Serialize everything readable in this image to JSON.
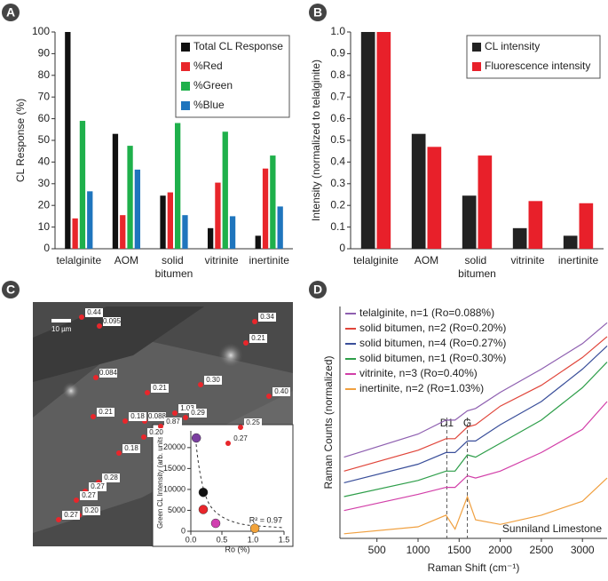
{
  "chart_data": [
    {
      "label": "A",
      "type": "bar",
      "y_label": "CL Response (%)",
      "legend": "upper right",
      "categories": [
        "telalginite",
        "AOM",
        "solid bitumen",
        "vitrinite",
        "inertinite"
      ],
      "series": [
        {
          "name": "Total CL Response",
          "color": "#111111",
          "values": [
            100,
            53,
            24.5,
            9.5,
            6
          ]
        },
        {
          "name": "%Red",
          "color": "#e8262b",
          "values": [
            14,
            15.5,
            26,
            30.5,
            37
          ]
        },
        {
          "name": "%Green",
          "color": "#1fb04b",
          "values": [
            59,
            47.5,
            58,
            54,
            43
          ]
        },
        {
          "name": "%Blue",
          "color": "#1f75bd",
          "values": [
            26.5,
            36.5,
            15.5,
            15,
            19.5
          ]
        }
      ],
      "ylim": [
        0,
        100
      ],
      "yticks": [
        0,
        10,
        20,
        30,
        40,
        50,
        60,
        70,
        80,
        90,
        100
      ]
    },
    {
      "label": "B",
      "type": "bar",
      "y_label": "Intensity (normalized to telalginite)",
      "legend": "upper right",
      "categories": [
        "telalginite",
        "AOM",
        "solid bitumen",
        "vitrinite",
        "inertinite"
      ],
      "series": [
        {
          "name": "CL intensity",
          "color": "#222222",
          "values": [
            1,
            0.53,
            0.245,
            0.095,
            0.06
          ]
        },
        {
          "name": "Fluorescence intensity",
          "color": "#e8202a",
          "values": [
            1,
            0.47,
            0.43,
            0.22,
            0.21
          ]
        }
      ],
      "ylim": [
        0,
        1
      ],
      "yticks": [
        0,
        0.1,
        0.2,
        0.3,
        0.4,
        0.5,
        0.6,
        0.7,
        0.8,
        0.9,
        {
          "value": 1,
          "label": "1.0"
        }
      ]
    },
    {
      "label": "C",
      "type": "scatter",
      "scale_bar": "10 µm",
      "image_labels": [
        "0.44",
        "0.095",
        "0.34",
        "0.21",
        "0.084",
        "0.30",
        "0.21",
        "0.40",
        "0.21",
        "0.088",
        "1.03",
        "0.29",
        "0.25",
        "0.18",
        "0.27",
        "0.87",
        "0.20",
        "0.18",
        "0.28",
        "0.27",
        "0.27",
        "0.20",
        "0.27"
      ],
      "x_label": "Ro (%)",
      "y_label": "Green CL Intensity (arb. units)",
      "annotation": "R² = 0.97",
      "x": [
        0.088,
        0.2,
        0.2,
        0.4,
        1.03
      ],
      "values": [
        22300,
        9300,
        5200,
        1900,
        700
      ],
      "colors": [
        "#7b3fa0",
        "#111111",
        "#e8262b",
        "#d13fb0",
        "#f2a33a"
      ],
      "xlim": [
        0,
        1.5
      ],
      "xticks": [
        {
          "value": 0,
          "label": "0.0"
        },
        {
          "value": 0.5,
          "label": "0.5"
        },
        {
          "value": 1,
          "label": "1.0"
        },
        {
          "value": 1.5,
          "label": "1.5"
        }
      ],
      "ylim": [
        0,
        24000
      ],
      "yticks": [
        0,
        5000,
        10000,
        15000,
        20000
      ]
    },
    {
      "label": "D",
      "type": "line",
      "x_label": "Raman Shift (cm⁻¹)",
      "y_label": "Raman Counts (normalized)",
      "annotation": "Sunniland Limestone",
      "legend": "upper left",
      "reference_lines": [
        {
          "x": 1350,
          "label": "D1"
        },
        {
          "x": 1600,
          "label": "G"
        }
      ],
      "x": [
        100,
        1000,
        1340,
        1450,
        1600,
        1700,
        2000,
        2500,
        3000,
        3300
      ],
      "series": [
        {
          "name": "telalginite, n=1 (Ro=0.088%)",
          "color": "#8e5fb0",
          "values": [
            3.5,
            4.5,
            5.1,
            5.1,
            5.5,
            5.6,
            6.3,
            7.3,
            8.4,
            9.3
          ]
        },
        {
          "name": "solid bitumen, n=2 (Ro=0.20%)",
          "color": "#e0453a",
          "values": [
            2.9,
            3.8,
            4.3,
            4.3,
            4.8,
            4.9,
            5.7,
            6.6,
            7.8,
            8.7
          ]
        },
        {
          "name": "solid bitumen, n=4 (Ro=0.27%)",
          "color": "#3a4f9a",
          "values": [
            2.4,
            3.2,
            3.7,
            3.7,
            4.2,
            4.2,
            4.9,
            5.9,
            7.3,
            8.3
          ]
        },
        {
          "name": "solid bitumen, n=1 (Ro=0.30%)",
          "color": "#2e9e4a",
          "values": [
            1.8,
            2.5,
            2.9,
            2.9,
            3.6,
            3.5,
            4.1,
            5.1,
            6.5,
            7.6
          ]
        },
        {
          "name": "vitrinite, n=3 (Ro=0.40%)",
          "color": "#d23fa8",
          "values": [
            1.2,
            1.9,
            2.2,
            2.2,
            2.7,
            2.6,
            2.9,
            3.7,
            4.7,
            5.9
          ]
        },
        {
          "name": "inertinite, n=2 (Ro=1.03%)",
          "color": "#f0a040",
          "values": [
            0.2,
            0.5,
            1.0,
            0.4,
            1.8,
            0.8,
            0.6,
            1.0,
            1.6,
            2.6
          ]
        }
      ],
      "xlim": [
        50,
        3300
      ],
      "xticks": [
        500,
        1000,
        1500,
        2000,
        2500,
        3000
      ],
      "ylim": [
        0,
        10
      ]
    }
  ]
}
